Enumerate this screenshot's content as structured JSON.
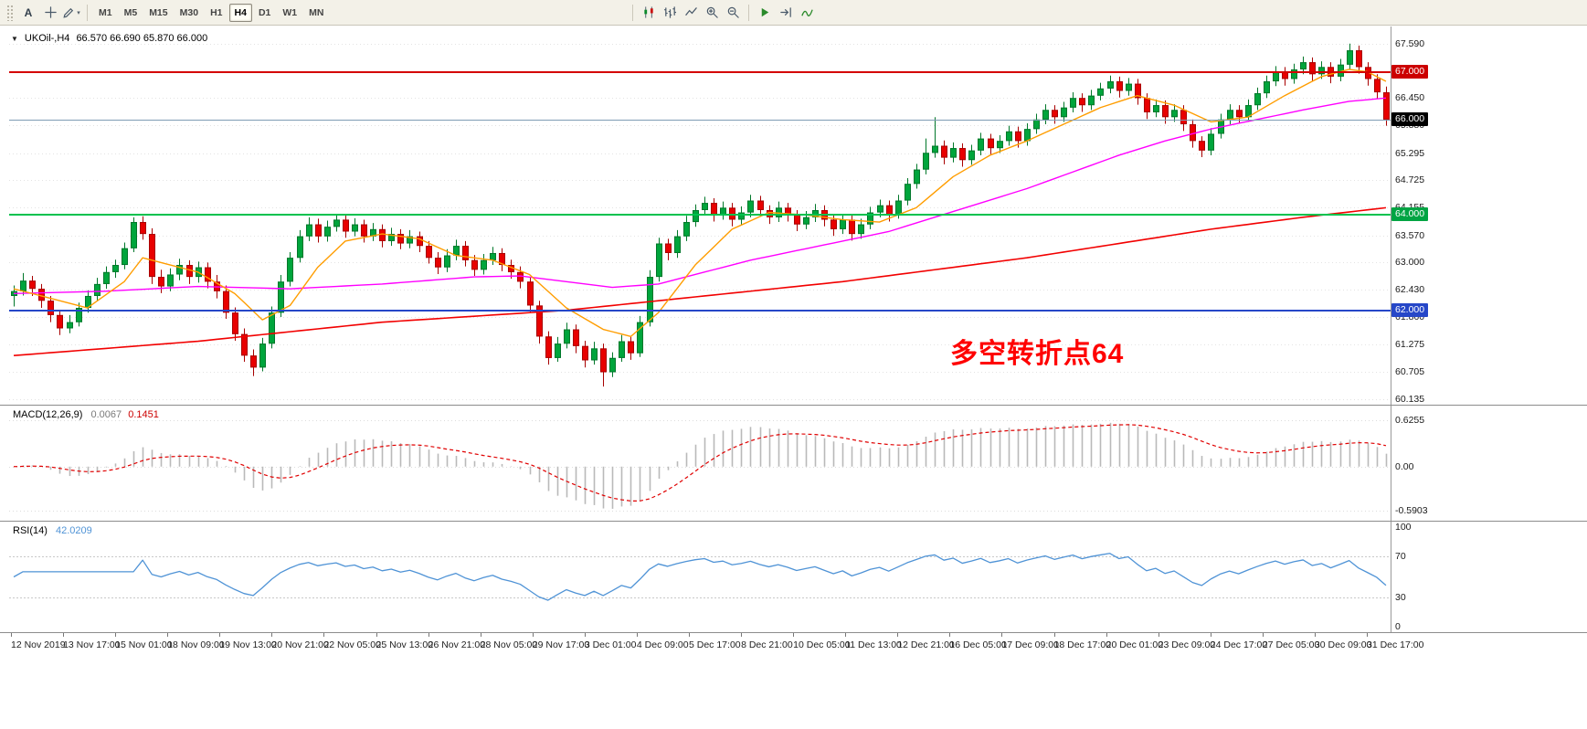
{
  "toolbar": {
    "text_tool": "A",
    "timeframes": [
      "M1",
      "M5",
      "M15",
      "M30",
      "H1",
      "H4",
      "D1",
      "W1",
      "MN"
    ],
    "active_timeframe": "H4",
    "left_icons": [
      "crosshair-icon",
      "draw-tools-icon"
    ],
    "chart_icons": [
      "candlestick-chart-icon",
      "bar-chart-icon",
      "line-chart-icon",
      "zoom-in-icon",
      "zoom-out-icon"
    ],
    "window_icons": [
      "auto-scroll-icon",
      "chart-shift-icon",
      "indicators-icon"
    ]
  },
  "chart_data": {
    "type": "candlestick",
    "symbol": "UKOil-,H4",
    "ohlc_text": "66.570 66.690 65.870 66.000",
    "timeframe": "H4",
    "up_color": "#00a53c",
    "up_border": "#00772a",
    "down_color": "#e80000",
    "down_border": "#a80000",
    "grid_color": "#e3e3e3",
    "price_axis": {
      "decimals": 3,
      "range": [
        60.02,
        67.95
      ],
      "ticks": [
        67.59,
        66.45,
        65.88,
        65.295,
        64.725,
        64.155,
        63.57,
        63.0,
        62.43,
        61.86,
        61.275,
        60.705,
        60.135
      ]
    },
    "time_labels": [
      "12 Nov 2019",
      "13 Nov 17:00",
      "15 Nov 01:00",
      "18 Nov 09:00",
      "19 Nov 13:00",
      "20 Nov 21:00",
      "22 Nov 05:00",
      "25 Nov 13:00",
      "26 Nov 21:00",
      "28 Nov 05:00",
      "29 Nov 17:00",
      "3 Dec 01:00",
      "4 Dec 09:00",
      "5 Dec 17:00",
      "8 Dec 21:00",
      "10 Dec 05:00",
      "11 Dec 13:00",
      "12 Dec 21:00",
      "16 Dec 05:00",
      "17 Dec 09:00",
      "18 Dec 17:00",
      "20 Dec 01:00",
      "23 Dec 09:00",
      "24 Dec 17:00",
      "27 Dec 05:00",
      "30 Dec 09:00",
      "31 Dec 17:00"
    ],
    "horizontal_lines": [
      {
        "price": 67.0,
        "color": "#d40000",
        "width": 2,
        "badge": "67.000",
        "badge_bg": "#cc0000",
        "badge_fg": "#ffffff"
      },
      {
        "price": 66.0,
        "color": "#7f9cb5",
        "width": 1,
        "badge": "66.000",
        "badge_bg": "#000000",
        "badge_fg": "#ffffff"
      },
      {
        "price": 64.0,
        "color": "#00c24e",
        "width": 2,
        "badge": "64.000",
        "badge_bg": "#00a443",
        "badge_fg": "#ffffff"
      },
      {
        "price": 62.0,
        "color": "#2647c8",
        "width": 2,
        "badge": "62.000",
        "badge_bg": "#2647c8",
        "badge_fg": "#ffffff"
      }
    ],
    "candles": [
      [
        62.3,
        62.52,
        62.08,
        62.4
      ],
      [
        62.4,
        62.78,
        62.31,
        62.62
      ],
      [
        62.62,
        62.72,
        62.3,
        62.45
      ],
      [
        62.45,
        62.55,
        62.05,
        62.2
      ],
      [
        62.2,
        62.3,
        61.75,
        61.9
      ],
      [
        61.9,
        62.0,
        61.48,
        61.62
      ],
      [
        61.62,
        61.9,
        61.52,
        61.75
      ],
      [
        61.75,
        62.16,
        61.66,
        62.05
      ],
      [
        62.05,
        62.42,
        61.95,
        62.3
      ],
      [
        62.3,
        62.68,
        62.2,
        62.55
      ],
      [
        62.55,
        62.92,
        62.45,
        62.8
      ],
      [
        62.8,
        63.06,
        62.68,
        62.95
      ],
      [
        62.95,
        63.42,
        62.86,
        63.3
      ],
      [
        63.3,
        63.95,
        63.22,
        63.85
      ],
      [
        63.85,
        63.97,
        63.48,
        63.6
      ],
      [
        63.6,
        63.72,
        62.55,
        62.7
      ],
      [
        62.7,
        62.85,
        62.36,
        62.5
      ],
      [
        62.5,
        62.88,
        62.4,
        62.75
      ],
      [
        62.75,
        63.08,
        62.63,
        62.95
      ],
      [
        62.95,
        63.05,
        62.55,
        62.7
      ],
      [
        62.7,
        63.02,
        62.58,
        62.9
      ],
      [
        62.9,
        63.0,
        62.46,
        62.6
      ],
      [
        62.6,
        62.74,
        62.25,
        62.4
      ],
      [
        62.4,
        62.52,
        61.82,
        61.95
      ],
      [
        61.95,
        62.06,
        61.36,
        61.5
      ],
      [
        61.5,
        61.62,
        60.92,
        61.05
      ],
      [
        61.05,
        61.18,
        60.62,
        60.8
      ],
      [
        60.8,
        61.42,
        60.72,
        61.3
      ],
      [
        61.3,
        62.08,
        61.2,
        61.95
      ],
      [
        61.95,
        62.74,
        61.86,
        62.6
      ],
      [
        62.6,
        63.22,
        62.5,
        63.1
      ],
      [
        63.1,
        63.68,
        63.0,
        63.55
      ],
      [
        63.55,
        63.95,
        63.45,
        63.8
      ],
      [
        63.8,
        63.92,
        63.42,
        63.55
      ],
      [
        63.55,
        63.88,
        63.44,
        63.75
      ],
      [
        63.75,
        64.02,
        63.65,
        63.9
      ],
      [
        63.9,
        64.0,
        63.52,
        63.65
      ],
      [
        63.65,
        63.93,
        63.55,
        63.8
      ],
      [
        63.8,
        63.9,
        63.42,
        63.55
      ],
      [
        63.55,
        63.83,
        63.45,
        63.7
      ],
      [
        63.7,
        63.8,
        63.32,
        63.45
      ],
      [
        63.45,
        63.73,
        63.35,
        63.6
      ],
      [
        63.6,
        63.7,
        63.28,
        63.4
      ],
      [
        63.4,
        63.68,
        63.3,
        63.55
      ],
      [
        63.55,
        63.65,
        63.22,
        63.35
      ],
      [
        63.35,
        63.45,
        62.98,
        63.1
      ],
      [
        63.1,
        63.22,
        62.76,
        62.9
      ],
      [
        62.9,
        63.28,
        62.8,
        63.15
      ],
      [
        63.15,
        63.48,
        63.05,
        63.35
      ],
      [
        63.35,
        63.45,
        62.92,
        63.05
      ],
      [
        63.05,
        63.16,
        62.72,
        62.85
      ],
      [
        62.85,
        63.18,
        62.75,
        63.05
      ],
      [
        63.05,
        63.33,
        62.95,
        63.2
      ],
      [
        63.2,
        63.3,
        62.82,
        62.95
      ],
      [
        62.95,
        63.06,
        62.66,
        62.8
      ],
      [
        62.8,
        62.92,
        62.46,
        62.6
      ],
      [
        62.6,
        62.7,
        61.96,
        62.1
      ],
      [
        62.1,
        62.2,
        61.3,
        61.45
      ],
      [
        61.45,
        61.56,
        60.86,
        61.0
      ],
      [
        61.0,
        61.44,
        60.92,
        61.3
      ],
      [
        61.3,
        61.74,
        61.2,
        61.6
      ],
      [
        61.6,
        61.7,
        61.1,
        61.25
      ],
      [
        61.25,
        61.36,
        60.8,
        60.95
      ],
      [
        60.95,
        61.34,
        60.86,
        61.2
      ],
      [
        61.2,
        61.3,
        60.4,
        60.7
      ],
      [
        60.7,
        61.12,
        60.6,
        61.0
      ],
      [
        61.0,
        61.48,
        60.92,
        61.35
      ],
      [
        61.35,
        61.45,
        60.96,
        61.1
      ],
      [
        61.1,
        61.88,
        61.02,
        61.75
      ],
      [
        61.75,
        62.84,
        61.66,
        62.7
      ],
      [
        62.7,
        63.52,
        62.6,
        63.4
      ],
      [
        63.4,
        63.5,
        63.05,
        63.2
      ],
      [
        63.2,
        63.68,
        63.1,
        63.55
      ],
      [
        63.55,
        63.98,
        63.45,
        63.85
      ],
      [
        63.85,
        64.22,
        63.75,
        64.1
      ],
      [
        64.1,
        64.38,
        64.0,
        64.25
      ],
      [
        64.25,
        64.35,
        63.86,
        64.0
      ],
      [
        64.0,
        64.28,
        63.9,
        64.15
      ],
      [
        64.15,
        64.25,
        63.76,
        63.9
      ],
      [
        63.9,
        64.18,
        63.8,
        64.05
      ],
      [
        64.05,
        64.42,
        63.95,
        64.3
      ],
      [
        64.3,
        64.4,
        63.96,
        64.1
      ],
      [
        64.1,
        64.2,
        63.81,
        63.95
      ],
      [
        63.95,
        64.28,
        63.85,
        64.15
      ],
      [
        64.15,
        64.25,
        63.86,
        64.0
      ],
      [
        64.0,
        64.1,
        63.66,
        63.8
      ],
      [
        63.8,
        64.08,
        63.7,
        63.95
      ],
      [
        63.95,
        64.23,
        63.85,
        64.1
      ],
      [
        64.1,
        64.2,
        63.76,
        63.9
      ],
      [
        63.9,
        64.0,
        63.56,
        63.7
      ],
      [
        63.7,
        64.02,
        63.6,
        63.9
      ],
      [
        63.9,
        64.0,
        63.46,
        63.6
      ],
      [
        63.6,
        63.92,
        63.5,
        63.8
      ],
      [
        63.8,
        64.17,
        63.7,
        64.05
      ],
      [
        64.05,
        64.32,
        63.95,
        64.2
      ],
      [
        64.2,
        64.3,
        63.86,
        64.0
      ],
      [
        64.0,
        64.42,
        63.92,
        64.3
      ],
      [
        64.3,
        64.77,
        64.2,
        64.65
      ],
      [
        64.65,
        65.07,
        64.55,
        64.95
      ],
      [
        64.95,
        65.6,
        64.85,
        65.3
      ],
      [
        65.3,
        66.05,
        65.2,
        65.45
      ],
      [
        65.45,
        65.56,
        65.06,
        65.2
      ],
      [
        65.2,
        65.52,
        65.1,
        65.4
      ],
      [
        65.4,
        65.5,
        65.01,
        65.15
      ],
      [
        65.15,
        65.47,
        65.05,
        65.35
      ],
      [
        65.35,
        65.72,
        65.25,
        65.6
      ],
      [
        65.6,
        65.7,
        65.26,
        65.4
      ],
      [
        65.4,
        65.67,
        65.3,
        65.55
      ],
      [
        65.55,
        65.87,
        65.45,
        65.75
      ],
      [
        65.75,
        65.85,
        65.41,
        65.55
      ],
      [
        65.55,
        65.92,
        65.45,
        65.8
      ],
      [
        65.8,
        66.12,
        65.7,
        66.0
      ],
      [
        66.0,
        66.32,
        65.9,
        66.2
      ],
      [
        66.2,
        66.3,
        65.91,
        66.05
      ],
      [
        66.05,
        66.37,
        65.95,
        66.25
      ],
      [
        66.25,
        66.57,
        66.15,
        66.45
      ],
      [
        66.45,
        66.55,
        66.16,
        66.3
      ],
      [
        66.3,
        66.62,
        66.2,
        66.5
      ],
      [
        66.5,
        66.77,
        66.4,
        66.65
      ],
      [
        66.65,
        66.92,
        66.55,
        66.8
      ],
      [
        66.8,
        66.9,
        66.46,
        66.6
      ],
      [
        66.6,
        66.87,
        66.5,
        66.75
      ],
      [
        66.75,
        66.85,
        66.31,
        66.45
      ],
      [
        66.45,
        66.55,
        66.01,
        66.15
      ],
      [
        66.15,
        66.42,
        66.05,
        66.3
      ],
      [
        66.3,
        66.4,
        65.91,
        66.05
      ],
      [
        66.05,
        66.32,
        65.95,
        66.2
      ],
      [
        66.2,
        66.3,
        65.76,
        65.9
      ],
      [
        65.9,
        66.0,
        65.41,
        65.55
      ],
      [
        65.55,
        65.65,
        65.21,
        65.35
      ],
      [
        65.35,
        65.82,
        65.25,
        65.7
      ],
      [
        65.7,
        66.12,
        65.6,
        66.0
      ],
      [
        66.0,
        66.32,
        65.9,
        66.2
      ],
      [
        66.2,
        66.3,
        65.91,
        66.05
      ],
      [
        66.05,
        66.42,
        65.95,
        66.3
      ],
      [
        66.3,
        66.67,
        66.2,
        66.55
      ],
      [
        66.55,
        66.92,
        66.45,
        66.8
      ],
      [
        66.8,
        67.12,
        66.7,
        67.0
      ],
      [
        67.0,
        67.1,
        66.71,
        66.85
      ],
      [
        66.85,
        67.17,
        66.75,
        67.05
      ],
      [
        67.05,
        67.32,
        66.95,
        67.2
      ],
      [
        67.2,
        67.3,
        66.81,
        66.95
      ],
      [
        66.95,
        67.22,
        66.85,
        67.1
      ],
      [
        67.1,
        67.2,
        66.76,
        66.9
      ],
      [
        66.9,
        67.27,
        66.8,
        67.15
      ],
      [
        67.15,
        67.59,
        67.05,
        67.45
      ],
      [
        67.45,
        67.55,
        66.96,
        67.1
      ],
      [
        67.1,
        67.2,
        66.71,
        66.85
      ],
      [
        66.85,
        66.95,
        66.43,
        66.57
      ],
      [
        66.57,
        66.69,
        65.87,
        66.0
      ]
    ],
    "moving_averages": [
      {
        "name": "ma-fast",
        "color": "#ff9d00",
        "width": 1.4,
        "points": [
          [
            0,
            62.45
          ],
          [
            4,
            62.25
          ],
          [
            8,
            62.05
          ],
          [
            12,
            62.6
          ],
          [
            14,
            63.1
          ],
          [
            17,
            62.95
          ],
          [
            20,
            62.8
          ],
          [
            24,
            62.35
          ],
          [
            27,
            61.8
          ],
          [
            30,
            62.1
          ],
          [
            33,
            62.9
          ],
          [
            36,
            63.45
          ],
          [
            40,
            63.6
          ],
          [
            44,
            63.5
          ],
          [
            48,
            63.15
          ],
          [
            52,
            63.05
          ],
          [
            56,
            62.75
          ],
          [
            60,
            62.05
          ],
          [
            64,
            61.6
          ],
          [
            67,
            61.45
          ],
          [
            70,
            61.95
          ],
          [
            74,
            62.95
          ],
          [
            78,
            63.7
          ],
          [
            82,
            64.05
          ],
          [
            86,
            64.0
          ],
          [
            90,
            63.9
          ],
          [
            94,
            63.85
          ],
          [
            98,
            64.15
          ],
          [
            102,
            64.8
          ],
          [
            106,
            65.25
          ],
          [
            110,
            65.55
          ],
          [
            114,
            65.9
          ],
          [
            118,
            66.25
          ],
          [
            122,
            66.5
          ],
          [
            126,
            66.3
          ],
          [
            130,
            65.95
          ],
          [
            134,
            66.05
          ],
          [
            138,
            66.5
          ],
          [
            142,
            66.9
          ],
          [
            145,
            67.05
          ],
          [
            147,
            67.0
          ],
          [
            149,
            66.8
          ]
        ]
      },
      {
        "name": "ma-mid",
        "color": "#ff00ff",
        "width": 1.4,
        "points": [
          [
            0,
            62.35
          ],
          [
            10,
            62.4
          ],
          [
            20,
            62.5
          ],
          [
            30,
            62.45
          ],
          [
            40,
            62.55
          ],
          [
            50,
            62.7
          ],
          [
            55,
            62.72
          ],
          [
            60,
            62.6
          ],
          [
            65,
            62.48
          ],
          [
            70,
            62.55
          ],
          [
            75,
            62.8
          ],
          [
            80,
            63.05
          ],
          [
            85,
            63.25
          ],
          [
            90,
            63.45
          ],
          [
            95,
            63.65
          ],
          [
            100,
            63.95
          ],
          [
            105,
            64.25
          ],
          [
            110,
            64.55
          ],
          [
            115,
            64.9
          ],
          [
            120,
            65.25
          ],
          [
            125,
            65.55
          ],
          [
            130,
            65.8
          ],
          [
            135,
            66.0
          ],
          [
            140,
            66.2
          ],
          [
            145,
            66.38
          ],
          [
            149,
            66.45
          ]
        ]
      },
      {
        "name": "ma-slow",
        "color": "#f20000",
        "width": 1.6,
        "points": [
          [
            0,
            61.05
          ],
          [
            20,
            61.35
          ],
          [
            40,
            61.75
          ],
          [
            60,
            62.0
          ],
          [
            75,
            62.3
          ],
          [
            90,
            62.6
          ],
          [
            100,
            62.85
          ],
          [
            110,
            63.1
          ],
          [
            120,
            63.4
          ],
          [
            130,
            63.7
          ],
          [
            140,
            63.95
          ],
          [
            149,
            64.15
          ]
        ]
      }
    ]
  },
  "annotation": {
    "text": "多空转折点64",
    "color": "#ff0000"
  },
  "indicators": {
    "macd": {
      "name": "MACD(12,26,9)",
      "value_main": "0.0067",
      "value_signal": "0.1451",
      "fast": 12,
      "slow": 26,
      "signal": 9,
      "axis_labels": [
        "0.6255",
        "0.00",
        "-0.5903"
      ],
      "axis_values": [
        0.6255,
        0,
        -0.5903
      ],
      "hist_color": "#b9b9b9",
      "signal_color": "#e00000"
    },
    "rsi": {
      "name": "RSI(14)",
      "value": "42.0209",
      "period": 14,
      "levels": [
        70,
        30
      ],
      "axis_labels": [
        "100",
        "70",
        "30",
        "0"
      ],
      "axis_values": [
        100,
        70,
        30,
        0
      ],
      "line_color": "#4f93d6",
      "level_color": "#c8c8c8"
    }
  }
}
